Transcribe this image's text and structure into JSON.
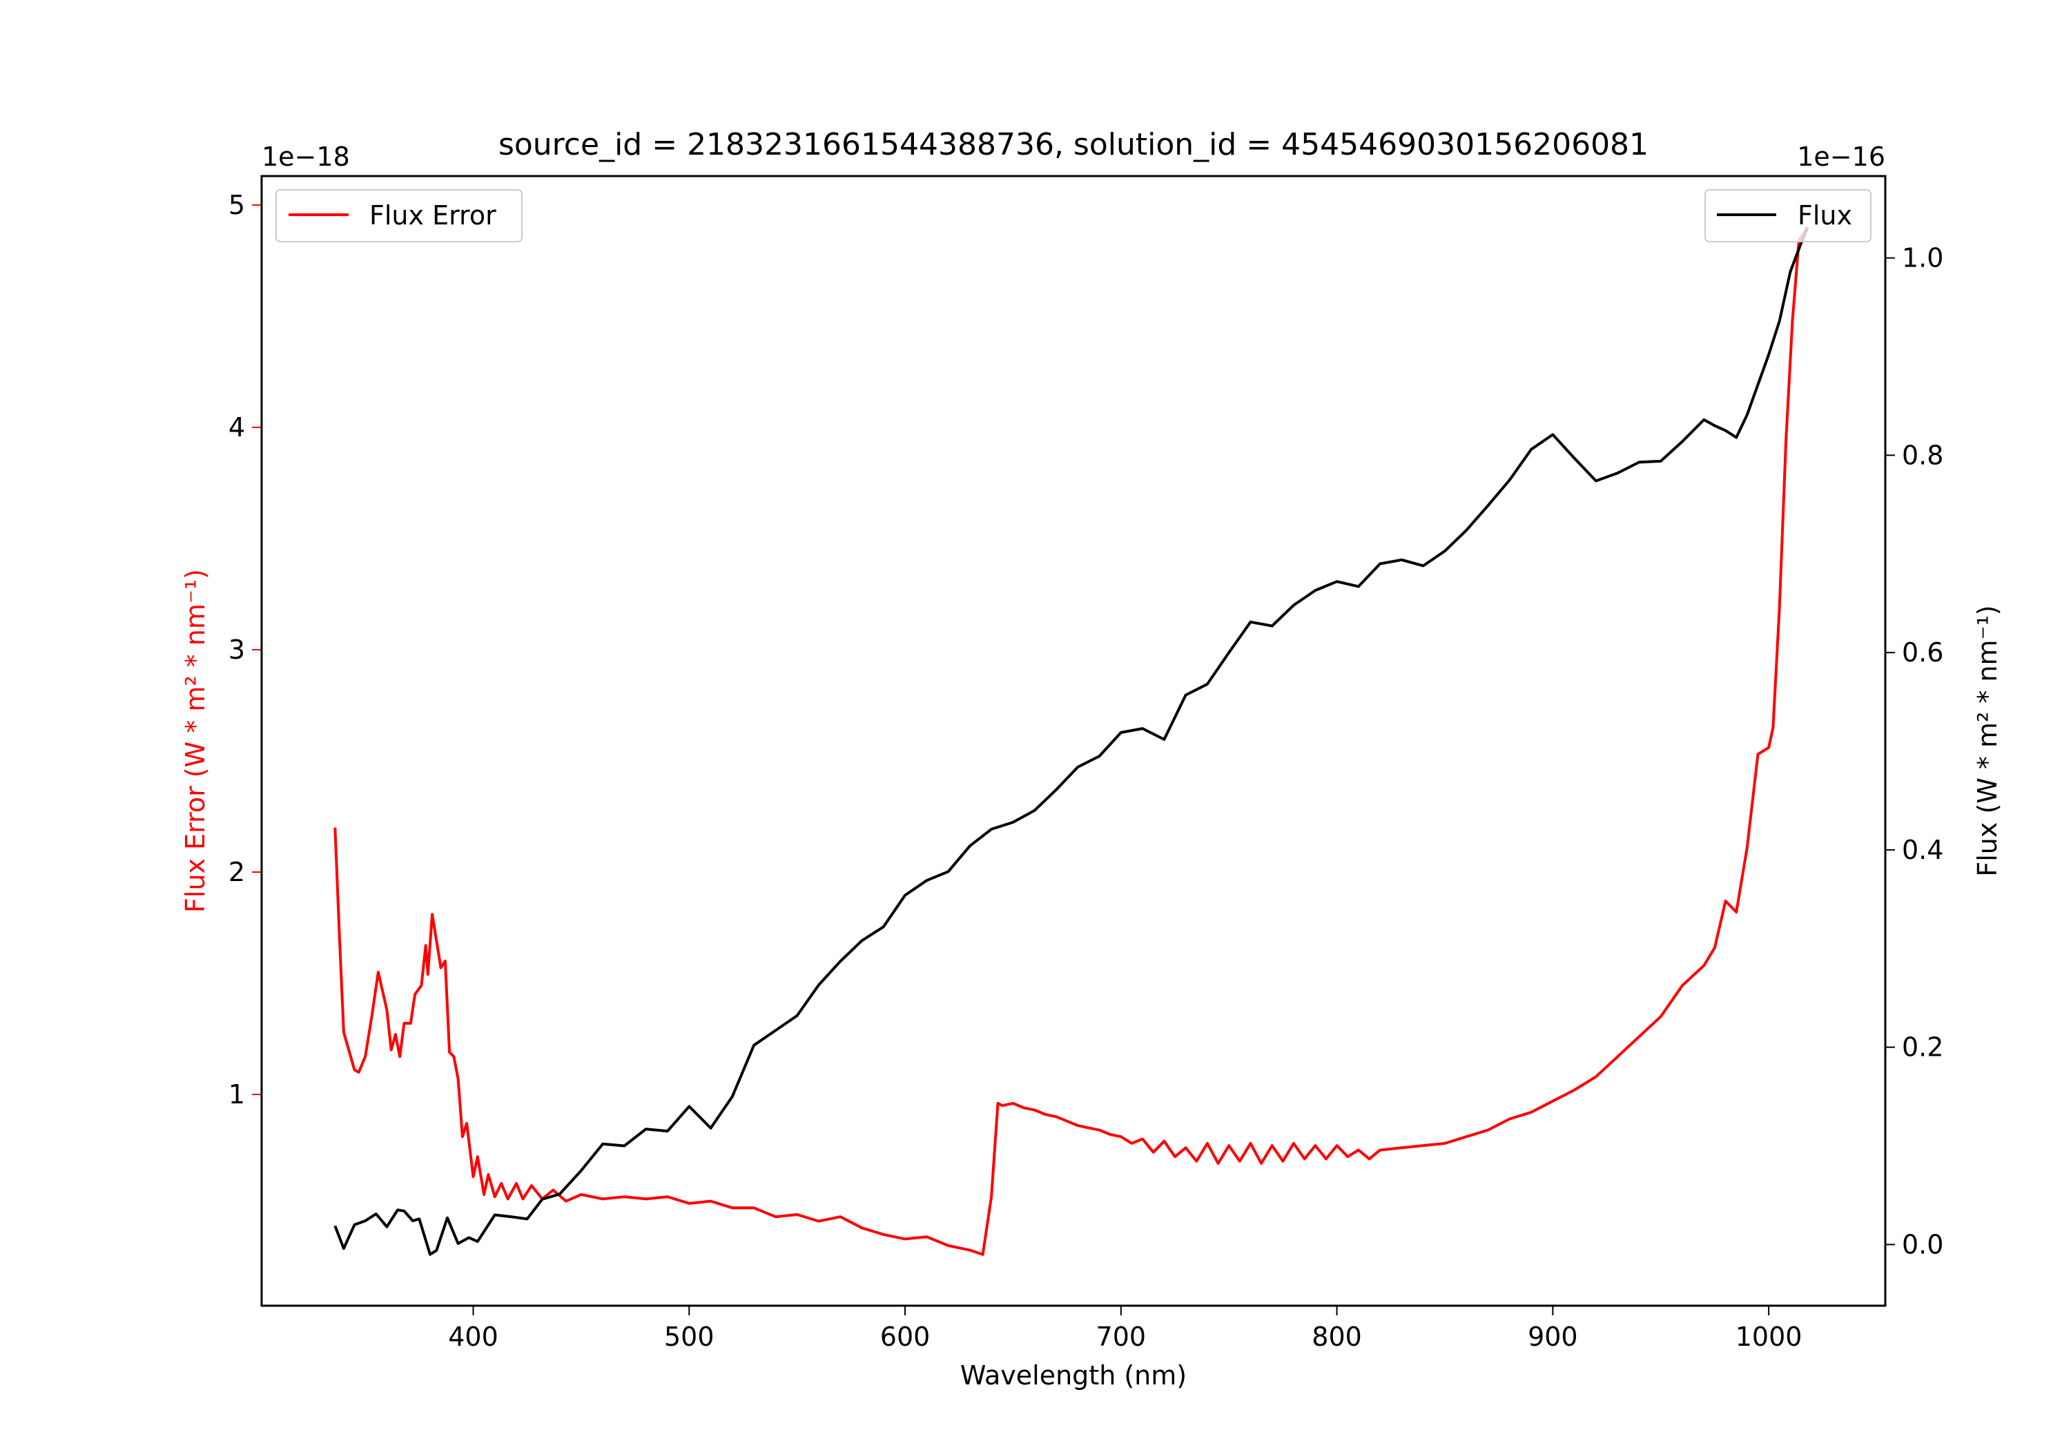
{
  "chart_data": {
    "type": "line",
    "title": "source_id = 2183231661544388736, solution_id = 4545469030156206081",
    "xlabel": "Wavelength (nm)",
    "xlim": [
      302,
      1054
    ],
    "xticks": [
      400,
      500,
      600,
      700,
      800,
      900,
      1000
    ],
    "y_left": {
      "label": "Flux Error (W * m$^2$ * nm$^{-1}$)",
      "label_text": "Flux Error (W * m² * nm⁻¹)",
      "offset_text": "1e−18",
      "ylim": [
        0.05,
        5.13
      ],
      "ticks": [
        1,
        2,
        3,
        4,
        5
      ],
      "color": "#ff0000"
    },
    "y_right": {
      "label_text": "Flux (W * m² * nm⁻¹)",
      "offset_text": "1e−16",
      "ylim": [
        -0.062,
        1.083
      ],
      "ticks": [
        0.0,
        0.2,
        0.4,
        0.6,
        0.8,
        1.0
      ],
      "tick_labels": [
        "0.0",
        "0.2",
        "0.4",
        "0.6",
        "0.8",
        "1.0"
      ],
      "color": "#000000"
    },
    "grid": false,
    "series": [
      {
        "name": "Flux Error",
        "axis": "left",
        "color": "#ff0000",
        "legend": "top-left",
        "x": [
          336,
          338,
          340,
          345,
          347,
          350,
          353,
          356,
          360,
          362,
          364,
          366,
          368,
          371,
          373,
          376,
          378,
          379,
          381,
          385,
          387,
          389,
          391,
          393,
          395,
          397,
          400,
          402,
          405,
          407,
          410,
          413,
          416,
          420,
          423,
          427,
          432,
          437,
          443,
          450,
          460,
          470,
          480,
          490,
          500,
          510,
          520,
          530,
          540,
          550,
          560,
          570,
          580,
          590,
          600,
          610,
          620,
          630,
          636,
          640,
          643,
          645,
          650,
          655,
          660,
          665,
          670,
          675,
          680,
          685,
          690,
          695,
          700,
          705,
          710,
          715,
          720,
          725,
          730,
          735,
          740,
          745,
          750,
          755,
          760,
          765,
          770,
          775,
          780,
          785,
          790,
          795,
          800,
          805,
          810,
          815,
          820,
          830,
          840,
          850,
          860,
          870,
          880,
          890,
          900,
          910,
          920,
          930,
          940,
          950,
          960,
          970,
          975,
          980,
          985,
          990,
          995,
          1000,
          1002,
          1005,
          1008,
          1011,
          1014,
          1018
        ],
        "y": [
          2.2,
          1.72,
          1.28,
          1.11,
          1.1,
          1.17,
          1.35,
          1.55,
          1.38,
          1.2,
          1.27,
          1.17,
          1.32,
          1.32,
          1.45,
          1.49,
          1.67,
          1.54,
          1.81,
          1.57,
          1.6,
          1.19,
          1.17,
          1.07,
          0.81,
          0.87,
          0.63,
          0.72,
          0.55,
          0.64,
          0.54,
          0.6,
          0.53,
          0.6,
          0.53,
          0.59,
          0.53,
          0.57,
          0.52,
          0.55,
          0.53,
          0.54,
          0.53,
          0.54,
          0.51,
          0.52,
          0.49,
          0.49,
          0.45,
          0.46,
          0.43,
          0.45,
          0.4,
          0.37,
          0.35,
          0.36,
          0.32,
          0.3,
          0.28,
          0.54,
          0.96,
          0.95,
          0.96,
          0.94,
          0.93,
          0.91,
          0.9,
          0.88,
          0.86,
          0.85,
          0.84,
          0.82,
          0.81,
          0.78,
          0.8,
          0.74,
          0.79,
          0.72,
          0.76,
          0.7,
          0.78,
          0.69,
          0.77,
          0.7,
          0.78,
          0.69,
          0.77,
          0.7,
          0.78,
          0.71,
          0.77,
          0.71,
          0.77,
          0.72,
          0.75,
          0.71,
          0.75,
          0.76,
          0.77,
          0.78,
          0.81,
          0.84,
          0.89,
          0.92,
          0.97,
          1.02,
          1.08,
          1.17,
          1.26,
          1.35,
          1.49,
          1.58,
          1.66,
          1.87,
          1.82,
          2.11,
          2.53,
          2.56,
          2.65,
          3.19,
          3.94,
          4.48,
          4.84,
          4.9
        ]
      },
      {
        "name": "Flux",
        "axis": "right",
        "color": "#000000",
        "legend": "top-right",
        "x": [
          336,
          340,
          345,
          350,
          355,
          360,
          365,
          368,
          372,
          375,
          380,
          383,
          388,
          393,
          398,
          402,
          410,
          418,
          425,
          432,
          440,
          450,
          460,
          470,
          480,
          490,
          500,
          510,
          520,
          530,
          540,
          550,
          560,
          570,
          580,
          590,
          600,
          610,
          620,
          630,
          640,
          650,
          660,
          670,
          680,
          690,
          700,
          710,
          720,
          730,
          740,
          750,
          760,
          770,
          780,
          790,
          800,
          810,
          820,
          830,
          840,
          850,
          860,
          870,
          880,
          890,
          900,
          910,
          920,
          930,
          940,
          950,
          960,
          970,
          975,
          980,
          985,
          990,
          1000,
          1005,
          1010,
          1015,
          1018
        ],
        "y": [
          0.019,
          -0.004,
          0.02,
          0.024,
          0.031,
          0.018,
          0.035,
          0.034,
          0.024,
          0.026,
          -0.01,
          -0.006,
          0.027,
          0.001,
          0.007,
          0.003,
          0.03,
          0.028,
          0.026,
          0.046,
          0.051,
          0.075,
          0.102,
          0.1,
          0.117,
          0.115,
          0.14,
          0.118,
          0.15,
          0.202,
          0.217,
          0.232,
          0.263,
          0.287,
          0.308,
          0.322,
          0.354,
          0.369,
          0.378,
          0.404,
          0.421,
          0.428,
          0.44,
          0.461,
          0.484,
          0.495,
          0.519,
          0.523,
          0.512,
          0.557,
          0.568,
          0.6,
          0.631,
          0.627,
          0.648,
          0.663,
          0.672,
          0.667,
          0.69,
          0.694,
          0.688,
          0.703,
          0.724,
          0.749,
          0.775,
          0.806,
          0.821,
          0.797,
          0.774,
          0.782,
          0.793,
          0.794,
          0.814,
          0.836,
          0.83,
          0.825,
          0.818,
          0.841,
          0.902,
          0.936,
          0.986,
          1.015,
          1.031
        ]
      }
    ]
  }
}
